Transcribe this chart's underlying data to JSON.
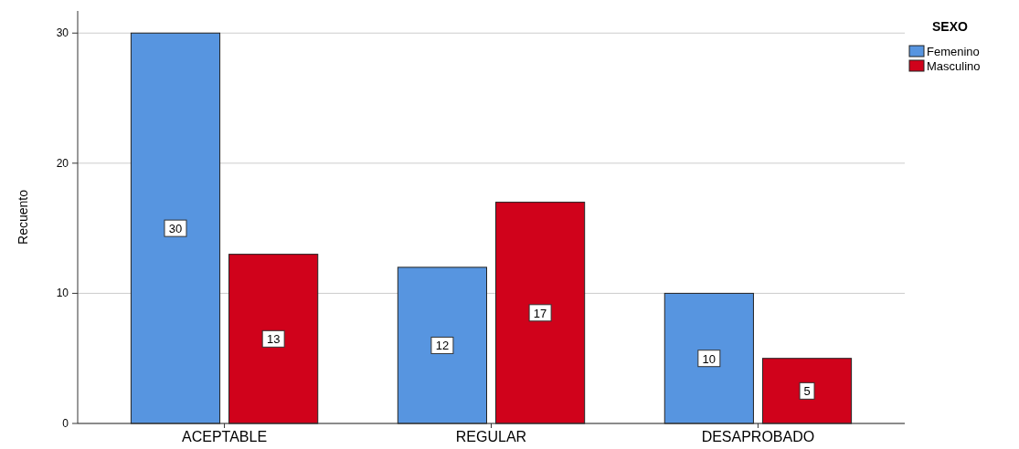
{
  "chart_data": {
    "type": "bar",
    "ylabel": "Recuento",
    "legend_title": "SEXO",
    "categories": [
      "ACEPTABLE",
      "REGULAR",
      "DESAPROBADO"
    ],
    "series": [
      {
        "name": "Femenino",
        "color": "#5795e0",
        "values": [
          30,
          12,
          10
        ]
      },
      {
        "name": "Masculino",
        "color": "#d0021b",
        "values": [
          13,
          17,
          5
        ]
      }
    ],
    "ylim": [
      0,
      31.7
    ],
    "yticks": [
      0,
      10,
      20,
      30
    ],
    "grid": "y",
    "legend": "top right",
    "data_labels": true
  }
}
